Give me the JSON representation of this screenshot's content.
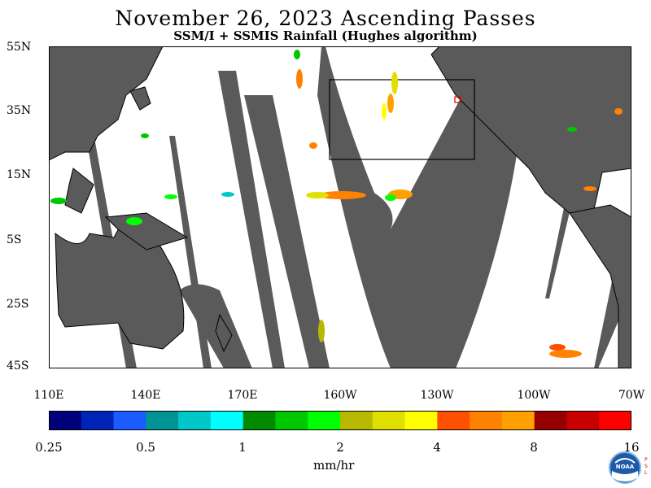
{
  "title": "November 26, 2023  Ascending Passes",
  "subtitle": "SSM/I + SSMIS Rainfall (Hughes algorithm)",
  "lat_labels": [
    "55N",
    "35N",
    "15N",
    "5S",
    "25S",
    "45S"
  ],
  "lon_labels": [
    "110E",
    "140E",
    "170E",
    "160W",
    "130W",
    "100W",
    "70W"
  ],
  "colorbar": {
    "colors": [
      "#00007a",
      "#0024b8",
      "#1a5cff",
      "#009494",
      "#00c8c8",
      "#00ffff",
      "#008a00",
      "#00c800",
      "#00ff00",
      "#b8b800",
      "#e0e000",
      "#ffff00",
      "#ff5000",
      "#ff8200",
      "#ffa000",
      "#960000",
      "#c80000",
      "#ff0000"
    ],
    "ticks": [
      "0.25",
      "0.5",
      "1",
      "2",
      "4",
      "8",
      "16"
    ],
    "unit": "mm/hr"
  },
  "colors": {
    "land": "#5a5a5a",
    "ocean": "#ffffff",
    "coast": "#000000"
  },
  "logo_text": "NOAA",
  "psl_text": "PSL"
}
